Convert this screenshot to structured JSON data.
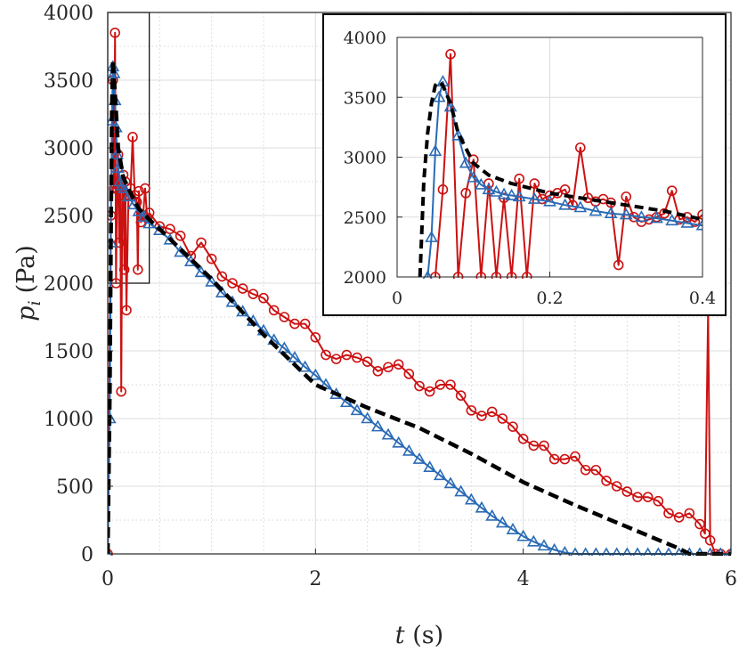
{
  "chart_data": [
    {
      "type": "line",
      "xlabel_var": "t",
      "xlabel_unit": "(s)",
      "ylabel_var": "p",
      "ylabel_sub": "i",
      "ylabel_unit": "(Pa)",
      "xlim": [
        0,
        6
      ],
      "ylim": [
        0,
        4000
      ],
      "xticks": [
        0,
        2,
        4,
        6
      ],
      "yticks": [
        0,
        500,
        1000,
        1500,
        2000,
        2500,
        3000,
        3500,
        4000
      ],
      "xtick_labels": [
        "0",
        "2",
        "4",
        "6"
      ],
      "ytick_labels": [
        "0",
        "500",
        "1000",
        "1500",
        "2000",
        "2500",
        "3000",
        "3500",
        "4000"
      ],
      "grid": true,
      "zoom_box": {
        "x": [
          0,
          0.4
        ],
        "y": [
          2000,
          4000
        ]
      },
      "series": [
        {
          "style": "dashed",
          "color": "#000000",
          "x": [
            0,
            0.02,
            0.03,
            0.04,
            0.05,
            0.07,
            0.1,
            0.15,
            0.2,
            0.25,
            0.3,
            0.4,
            0.5,
            1.0,
            1.5,
            2.0,
            2.5,
            3.0,
            3.5,
            4.0,
            4.5,
            5.0,
            5.5,
            5.6,
            5.8,
            6.0
          ],
          "y": [
            0,
            1200,
            2300,
            3300,
            3650,
            3400,
            3000,
            2780,
            2700,
            2620,
            2550,
            2470,
            2400,
            2030,
            1620,
            1250,
            1080,
            930,
            740,
            530,
            360,
            200,
            40,
            0,
            0,
            0
          ]
        },
        {
          "style": "solid",
          "marker": "circle",
          "color": "#cc1111",
          "x": [
            0,
            0.03,
            0.05,
            0.06,
            0.07,
            0.08,
            0.09,
            0.1,
            0.11,
            0.12,
            0.13,
            0.14,
            0.15,
            0.16,
            0.17,
            0.18,
            0.2,
            0.22,
            0.24,
            0.26,
            0.28,
            0.29,
            0.3,
            0.32,
            0.34,
            0.36,
            0.38,
            0.4,
            0.5,
            0.6,
            0.7,
            0.8,
            0.9,
            1.0,
            1.1,
            1.2,
            1.3,
            1.4,
            1.5,
            1.6,
            1.7,
            1.8,
            1.9,
            2.0,
            2.1,
            2.2,
            2.3,
            2.4,
            2.5,
            2.6,
            2.7,
            2.8,
            2.9,
            3.0,
            3.1,
            3.2,
            3.3,
            3.4,
            3.5,
            3.6,
            3.7,
            3.8,
            3.9,
            4.0,
            4.1,
            4.2,
            4.3,
            4.4,
            4.5,
            4.6,
            4.7,
            4.8,
            4.9,
            5.0,
            5.1,
            5.2,
            5.3,
            5.4,
            5.5,
            5.6,
            5.7,
            5.75,
            5.78,
            5.8,
            5.85,
            5.9,
            6.0
          ],
          "y": [
            0,
            2500,
            3500,
            2700,
            3850,
            2000,
            2700,
            2950,
            2300,
            2750,
            1200,
            2650,
            2800,
            2100,
            2750,
            1800,
            2650,
            2700,
            3080,
            2650,
            2600,
            2100,
            2680,
            2450,
            2500,
            2700,
            2480,
            2520,
            2420,
            2400,
            2350,
            2200,
            2300,
            2180,
            2050,
            2000,
            1960,
            1920,
            1890,
            1800,
            1750,
            1700,
            1700,
            1600,
            1470,
            1440,
            1470,
            1450,
            1420,
            1350,
            1380,
            1400,
            1330,
            1240,
            1200,
            1250,
            1250,
            1170,
            1060,
            1020,
            1050,
            1000,
            940,
            850,
            800,
            800,
            700,
            700,
            720,
            620,
            620,
            540,
            500,
            460,
            420,
            420,
            390,
            300,
            270,
            300,
            220,
            150,
            1800,
            100,
            0,
            0,
            0
          ]
        },
        {
          "style": "solid",
          "marker": "triangle",
          "color": "#2a6bb5",
          "x": [
            0,
            0.02,
            0.03,
            0.04,
            0.05,
            0.06,
            0.07,
            0.08,
            0.09,
            0.1,
            0.12,
            0.14,
            0.16,
            0.2,
            0.25,
            0.3,
            0.35,
            0.4,
            0.5,
            0.6,
            0.7,
            0.8,
            0.9,
            1.0,
            1.1,
            1.2,
            1.3,
            1.4,
            1.5,
            1.6,
            1.7,
            1.8,
            1.9,
            2.0,
            2.1,
            2.2,
            2.3,
            2.4,
            2.5,
            2.6,
            2.7,
            2.8,
            2.9,
            3.0,
            3.1,
            3.2,
            3.3,
            3.4,
            3.5,
            3.6,
            3.7,
            3.8,
            3.9,
            4.0,
            4.1,
            4.2,
            4.3,
            4.4,
            4.5,
            4.6,
            4.7,
            4.8,
            4.9,
            5.0,
            5.1,
            5.2,
            5.3,
            5.4,
            5.5,
            5.6,
            5.7,
            5.8,
            5.9,
            6.0
          ],
          "y": [
            0,
            1000,
            2300,
            3200,
            3600,
            3550,
            3350,
            3150,
            2950,
            2850,
            2750,
            2720,
            2700,
            2640,
            2580,
            2530,
            2490,
            2440,
            2390,
            2320,
            2230,
            2160,
            2080,
            2010,
            1930,
            1860,
            1790,
            1720,
            1650,
            1580,
            1520,
            1450,
            1380,
            1320,
            1250,
            1180,
            1120,
            1060,
            1000,
            940,
            880,
            820,
            760,
            700,
            640,
            580,
            520,
            460,
            400,
            340,
            280,
            230,
            180,
            130,
            90,
            60,
            30,
            10,
            0,
            0,
            0,
            0,
            0,
            0,
            0,
            0,
            0,
            0,
            0,
            0,
            0,
            0,
            0,
            0
          ]
        }
      ]
    },
    {
      "type": "line",
      "xlim": [
        0,
        0.4
      ],
      "ylim": [
        2000,
        4000
      ],
      "xticks": [
        0,
        0.2,
        0.4
      ],
      "yticks": [
        2000,
        2500,
        3000,
        3500,
        4000
      ],
      "xtick_labels": [
        "0",
        "0.2",
        "0.4"
      ],
      "ytick_labels": [
        "2000",
        "2500",
        "3000",
        "3500",
        "4000"
      ],
      "grid": true,
      "series": [
        {
          "style": "dashed",
          "color": "#000000",
          "x": [
            0.03,
            0.035,
            0.04,
            0.045,
            0.05,
            0.055,
            0.06,
            0.07,
            0.08,
            0.1,
            0.12,
            0.15,
            0.2,
            0.25,
            0.3,
            0.35,
            0.4
          ],
          "y": [
            2000,
            2800,
            3200,
            3450,
            3600,
            3630,
            3600,
            3450,
            3200,
            2950,
            2850,
            2780,
            2700,
            2650,
            2600,
            2550,
            2480
          ]
        },
        {
          "style": "solid",
          "marker": "circle",
          "color": "#cc1111",
          "x": [
            0.05,
            0.06,
            0.07,
            0.08,
            0.09,
            0.1,
            0.11,
            0.12,
            0.13,
            0.14,
            0.15,
            0.16,
            0.17,
            0.18,
            0.19,
            0.2,
            0.21,
            0.22,
            0.23,
            0.24,
            0.25,
            0.26,
            0.27,
            0.28,
            0.29,
            0.3,
            0.31,
            0.32,
            0.33,
            0.34,
            0.35,
            0.36,
            0.37,
            0.38,
            0.39,
            0.4
          ],
          "y": [
            2000,
            2730,
            3860,
            2000,
            2700,
            2980,
            2000,
            2780,
            2000,
            2660,
            2000,
            2820,
            2000,
            2780,
            2650,
            2680,
            2700,
            2730,
            2600,
            3080,
            2660,
            2630,
            2650,
            2620,
            2100,
            2670,
            2500,
            2460,
            2480,
            2500,
            2530,
            2720,
            2480,
            2500,
            2460,
            2520
          ]
        },
        {
          "style": "solid",
          "marker": "triangle",
          "color": "#2a6bb5",
          "x": [
            0.04,
            0.045,
            0.05,
            0.055,
            0.06,
            0.07,
            0.08,
            0.09,
            0.1,
            0.11,
            0.12,
            0.13,
            0.14,
            0.15,
            0.16,
            0.18,
            0.2,
            0.22,
            0.24,
            0.26,
            0.28,
            0.3,
            0.32,
            0.34,
            0.36,
            0.38,
            0.4
          ],
          "y": [
            2000,
            2330,
            3050,
            3500,
            3630,
            3420,
            3180,
            2950,
            2830,
            2770,
            2730,
            2710,
            2690,
            2680,
            2670,
            2650,
            2630,
            2600,
            2580,
            2550,
            2530,
            2520,
            2500,
            2490,
            2470,
            2450,
            2430
          ]
        }
      ]
    }
  ]
}
